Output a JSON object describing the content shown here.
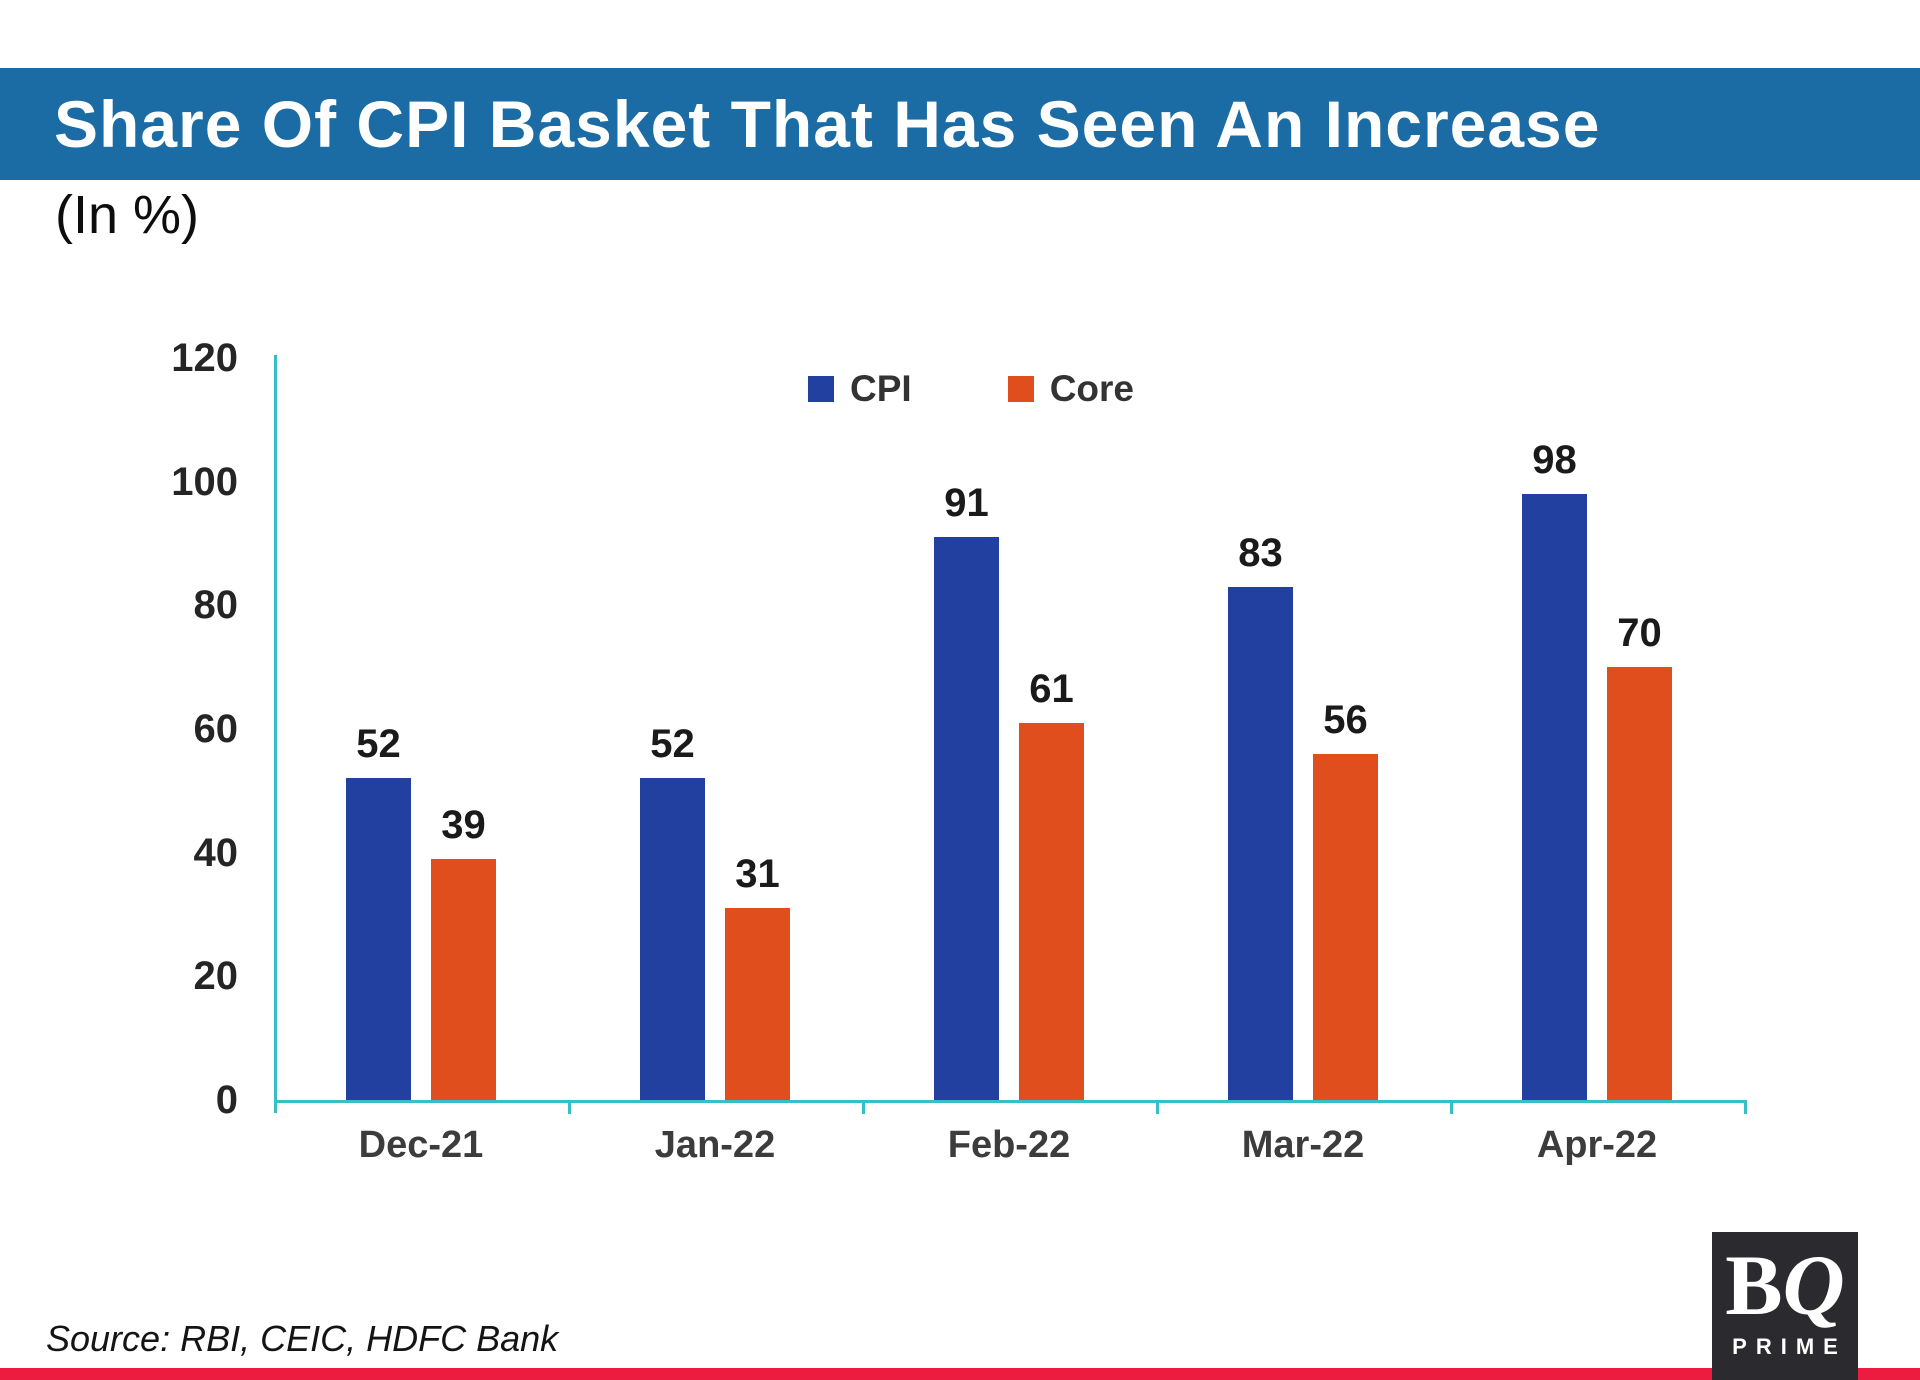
{
  "header": {
    "title": "Share Of CPI Basket That Has Seen An Increase",
    "subtitle": "(In %)",
    "bar_color": "#1b6ba4"
  },
  "chart_data": {
    "type": "bar",
    "categories": [
      "Dec-21",
      "Jan-22",
      "Feb-22",
      "Mar-22",
      "Apr-22"
    ],
    "series": [
      {
        "name": "CPI",
        "color": "#21409f",
        "values": [
          52,
          52,
          91,
          83,
          98
        ]
      },
      {
        "name": "Core",
        "color": "#e04e1e",
        "values": [
          39,
          31,
          61,
          56,
          70
        ]
      }
    ],
    "title": "Share Of CPI Basket That Has Seen An Increase",
    "xlabel": "",
    "ylabel": "",
    "ylim": [
      0,
      120
    ],
    "yticks": [
      0,
      20,
      40,
      60,
      80,
      100,
      120
    ],
    "axis_color": "#38bec9",
    "grid": false,
    "legend_position": "top-center",
    "value_labels": true
  },
  "footer": {
    "source": "Source: RBI, CEIC, HDFC Bank",
    "accent_bar_color": "#ec1c40"
  },
  "logo": {
    "letters": [
      "B",
      "Q"
    ],
    "sub": "PRIME",
    "bg_color": "#2b2a2e"
  }
}
